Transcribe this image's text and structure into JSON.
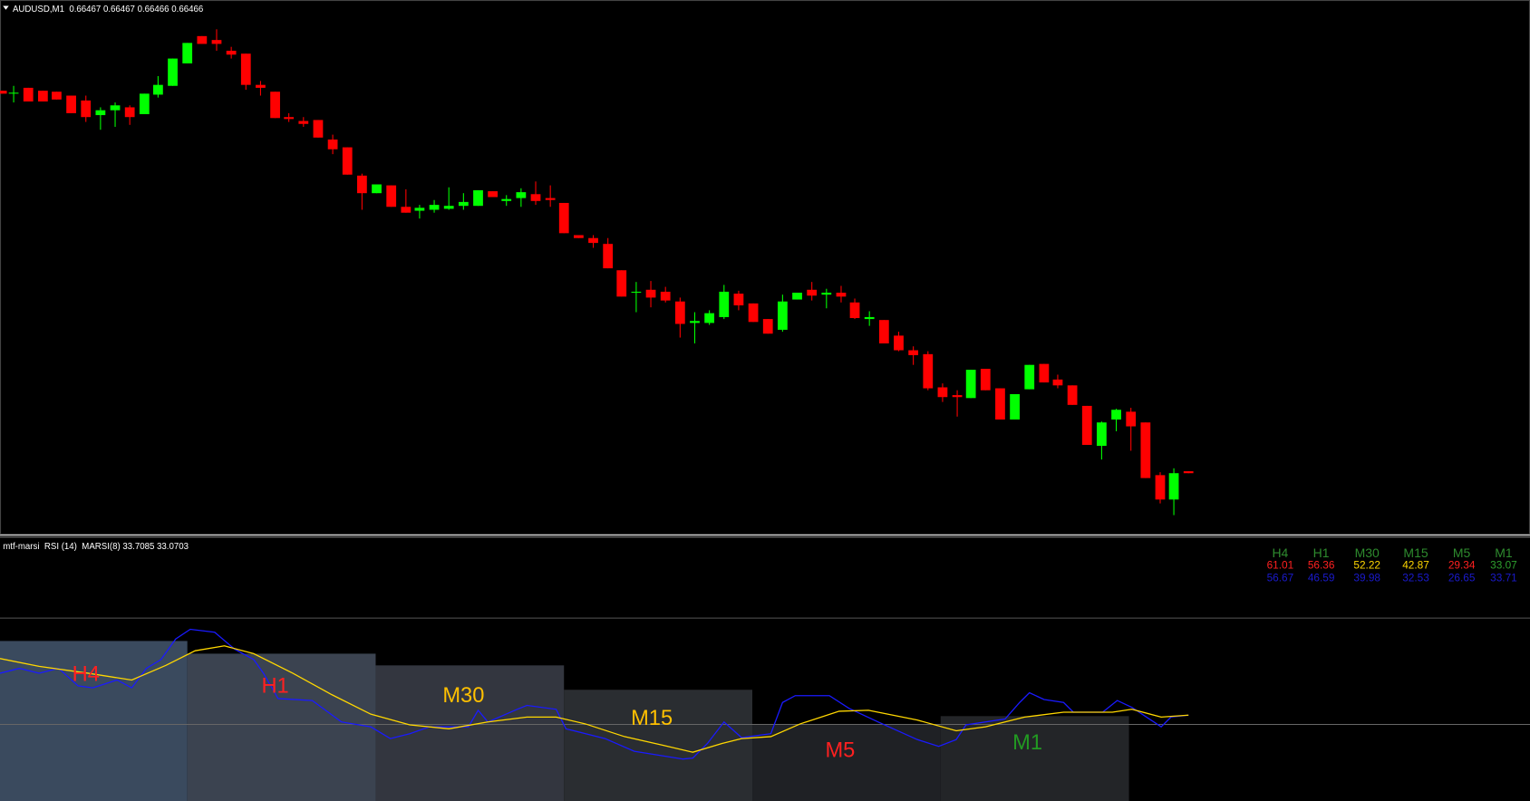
{
  "header": {
    "symbol_info": "AUDUSD,M1  0.66467 0.66467 0.66466 0.66466"
  },
  "indicator": {
    "label": "mtf-marsi  RSI (14)  MARSI(8) 33.7085 33.0703",
    "timeframes": [
      "H4",
      "H1",
      "M30",
      "M15",
      "M5",
      "M1"
    ],
    "rsi_values": [
      61.01,
      56.36,
      52.22,
      42.87,
      29.34,
      33.07
    ],
    "rsi_colors": [
      "#ff2020",
      "#ff2020",
      "#ffd700",
      "#ffd700",
      "#ff2020",
      "#2ea02e"
    ],
    "marsi_values": [
      56.67,
      46.59,
      39.98,
      32.53,
      26.65,
      33.71
    ],
    "marsi_color": "#1a1acc",
    "timeframe_color": "#2e8b2e",
    "zone_labels": [
      "H4",
      "H1",
      "M30",
      "M15",
      "M5",
      "M1"
    ],
    "zone_colors": [
      "#ff2020",
      "#ff2020",
      "#ffc000",
      "#ffc000",
      "#ff2020",
      "#229a22"
    ]
  }
}
